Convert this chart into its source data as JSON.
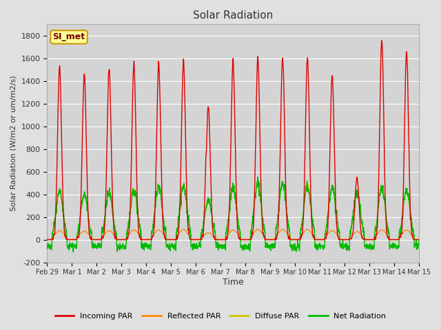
{
  "title": "Solar Radiation",
  "xlabel": "Time",
  "ylabel": "Solar Radiation (W/m2 or um/m2/s)",
  "ylim": [
    -200,
    1900
  ],
  "yticks": [
    -200,
    0,
    200,
    400,
    600,
    800,
    1000,
    1200,
    1400,
    1600,
    1800
  ],
  "fig_bg": "#e0e0e0",
  "plot_bg": "#d4d4d4",
  "grid_color": "#ffffff",
  "annotation_text": "SI_met",
  "annotation_bg": "#ffff99",
  "annotation_border": "#cc9900",
  "colors": {
    "incoming": "#dd0000",
    "reflected": "#ff8800",
    "diffuse": "#cccc00",
    "net": "#00bb00"
  },
  "legend": [
    "Incoming PAR",
    "Reflected PAR",
    "Diffuse PAR",
    "Net Radiation"
  ],
  "n_days": 15,
  "x_tick_labels": [
    "Feb 29",
    "Mar 1",
    "Mar 2",
    "Mar 3",
    "Mar 4",
    "Mar 5",
    "Mar 6",
    "Mar 7",
    "Mar 8",
    "Mar 9",
    "Mar 10",
    "Mar 11",
    "Mar 12",
    "Mar 13",
    "Mar 14",
    "Mar 15"
  ],
  "incoming_peaks": [
    1520,
    1460,
    1510,
    1560,
    1550,
    1580,
    1180,
    1570,
    1600,
    1620,
    1600,
    1460,
    550,
    1750,
    1650
  ],
  "incoming_secondary": [
    0,
    0,
    0,
    0,
    0,
    0,
    760,
    0,
    0,
    0,
    0,
    0,
    0,
    0,
    0
  ],
  "net_peaks": [
    430,
    410,
    420,
    440,
    470,
    480,
    350,
    460,
    500,
    500,
    480,
    460,
    420,
    460,
    440
  ],
  "reflected_peaks": [
    80,
    75,
    80,
    85,
    85,
    90,
    60,
    85,
    90,
    90,
    90,
    80,
    70,
    85,
    85
  ],
  "diffuse_peaks": [
    430,
    400,
    430,
    450,
    470,
    490,
    350,
    470,
    500,
    490,
    480,
    460,
    410,
    460,
    440
  ],
  "night_net": -60,
  "line_width": 1.0
}
